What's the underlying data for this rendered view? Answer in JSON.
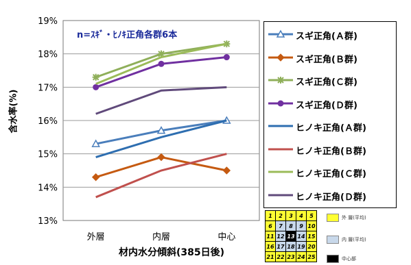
{
  "chart_data": {
    "type": "line",
    "title": "",
    "note": "n=ｽｷﾞ・ﾋﾉｷ正角各群6本",
    "xlabel": "材内水分傾斜(385日後)",
    "ylabel": "含水率(%)",
    "categories": [
      "外層",
      "内層",
      "中心"
    ],
    "yticks": [
      "13%",
      "14%",
      "15%",
      "16%",
      "17%",
      "18%",
      "19%"
    ],
    "ylim": [
      13,
      19
    ],
    "grid": true,
    "legend_position": "right",
    "series": [
      {
        "name": "スギ正角(Ａ群)",
        "values": [
          15.3,
          15.7,
          16.0
        ],
        "color": "#4a7ebb",
        "marker": "triangle"
      },
      {
        "name": "スギ正角(Ｂ群)",
        "values": [
          14.3,
          14.9,
          14.5
        ],
        "color": "#c55a11",
        "marker": "diamond"
      },
      {
        "name": "スギ正角(Ｃ群)",
        "values": [
          17.3,
          18.0,
          18.3
        ],
        "color": "#8faf5a",
        "marker": "star"
      },
      {
        "name": "スギ正角(Ｄ群)",
        "values": [
          17.0,
          17.7,
          17.9
        ],
        "color": "#7030a0",
        "marker": "circle"
      },
      {
        "name": "ヒノキ正角(Ａ群)",
        "values": [
          14.9,
          15.5,
          16.0
        ],
        "color": "#2e6eb0",
        "marker": "none"
      },
      {
        "name": "ヒノキ正角(Ｂ群)",
        "values": [
          13.7,
          14.5,
          15.0
        ],
        "color": "#c0504d",
        "marker": "none"
      },
      {
        "name": "ヒノキ正角(Ｃ群)",
        "values": [
          17.1,
          17.9,
          18.3
        ],
        "color": "#9bbb59",
        "marker": "none"
      },
      {
        "name": "ヒノキ正角(Ｄ群)",
        "values": [
          16.2,
          16.9,
          17.0
        ],
        "color": "#604a7b",
        "marker": "none"
      }
    ]
  },
  "grid_diagram": {
    "cells": [
      [
        "1",
        "2",
        "3",
        "4",
        "5"
      ],
      [
        "6",
        "7",
        "8",
        "9",
        "10"
      ],
      [
        "11",
        "12",
        "13",
        "14",
        "15"
      ],
      [
        "16",
        "17",
        "18",
        "19",
        "20"
      ],
      [
        "21",
        "22",
        "23",
        "24",
        "25"
      ]
    ],
    "outer_color": "#ffff33",
    "inner_color": "#c8d8ea",
    "center_color": "#000000",
    "labels": [
      "外 層(平均)",
      "内 層(平均)",
      "中心部"
    ]
  }
}
